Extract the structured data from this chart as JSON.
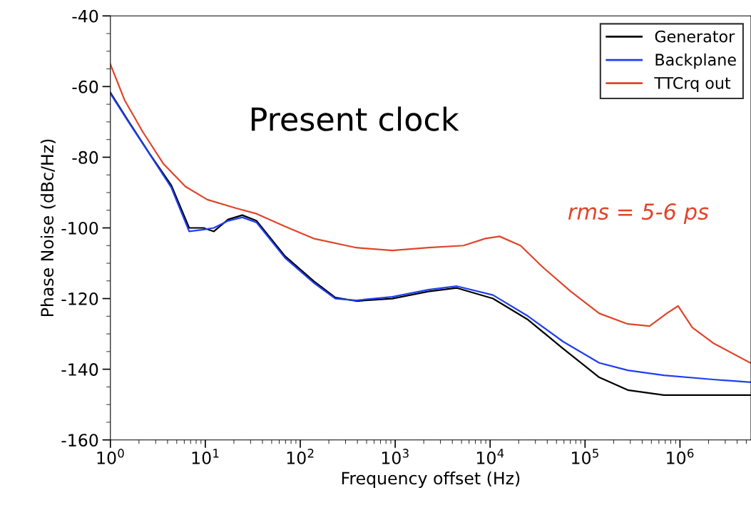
{
  "chart_data": {
    "type": "line",
    "xlabel": "Frequency offset (Hz)",
    "ylabel": "Phase Noise (dBc/Hz)",
    "log": "x",
    "xlim": [
      1,
      5600000
    ],
    "ylim": [
      -160,
      -40
    ],
    "xticks": [
      {
        "value": 1,
        "label": "10$^{0}$"
      },
      {
        "value": 10,
        "label": "10$^{1}$"
      },
      {
        "value": 100,
        "label": "10$^{2}$"
      },
      {
        "value": 1000,
        "label": "10$^{3}$"
      },
      {
        "value": 10000,
        "label": "10$^{4}$"
      },
      {
        "value": 100000,
        "label": "10$^{5}$"
      },
      {
        "value": 1000000,
        "label": "10$^{6}$"
      }
    ],
    "yticks": [
      -160,
      -140,
      -120,
      -100,
      -80,
      -60,
      -40
    ],
    "grid": false,
    "legend": "top right",
    "marker": "none",
    "line_style": "solid",
    "annotations": [
      "Present clock",
      "rms = 5-6 ps"
    ],
    "series": [
      {
        "name": "Generator",
        "color": "#000000",
        "x": [
          1,
          1.55,
          2.57,
          4.37,
          6.76,
          9.55,
          12.3,
          17.4,
          24.5,
          34.7,
          69.2,
          138,
          234,
          389,
          933,
          2239,
          4467,
          10715,
          25119,
          58884,
          141254,
          281838,
          676083,
          5600000
        ],
        "values": [
          -61.7,
          -69.8,
          -78.9,
          -87.9,
          -100,
          -100,
          -101,
          -97.6,
          -96.4,
          -98,
          -108,
          -115,
          -119.7,
          -120.7,
          -120,
          -118,
          -117,
          -120,
          -126,
          -134.2,
          -142.3,
          -145.9,
          -147.3,
          -147.3
        ]
      },
      {
        "name": "Backplane",
        "color": "#1f3ff0",
        "x": [
          1,
          1.55,
          2.57,
          4.37,
          6.76,
          9.55,
          12.3,
          17.4,
          24.5,
          34.7,
          69.2,
          138,
          234,
          389,
          933,
          2239,
          4467,
          10715,
          25119,
          58884,
          141254,
          281838,
          676083,
          2238721,
          5600000
        ],
        "values": [
          -62,
          -70,
          -79,
          -88.5,
          -101,
          -100.5,
          -100,
          -98,
          -97,
          -98.5,
          -108.5,
          -115.5,
          -120,
          -120.5,
          -119.5,
          -117.5,
          -116.5,
          -119,
          -125,
          -132.2,
          -138.2,
          -140.3,
          -141.7,
          -142.9,
          -143.7
        ]
      },
      {
        "name": "TTCrq out",
        "color": "#e0452a",
        "x": [
          1,
          1.41,
          2.19,
          3.63,
          6.17,
          10.5,
          20.9,
          34.7,
          69.2,
          138,
          389,
          933,
          2239,
          5248,
          8913,
          12589,
          20893,
          35481,
          70795,
          141254,
          281838,
          478630,
          724436,
          954993,
          1348963,
          2238721,
          5600000
        ],
        "values": [
          -53.7,
          -63.8,
          -72.8,
          -81.9,
          -88.3,
          -92,
          -94.4,
          -96,
          -99.6,
          -103,
          -105.6,
          -106.4,
          -105.6,
          -105,
          -103,
          -102.4,
          -105,
          -111,
          -118,
          -124.2,
          -127.2,
          -127.8,
          -124.2,
          -122.1,
          -128.2,
          -132.6,
          -138.3
        ]
      }
    ]
  }
}
